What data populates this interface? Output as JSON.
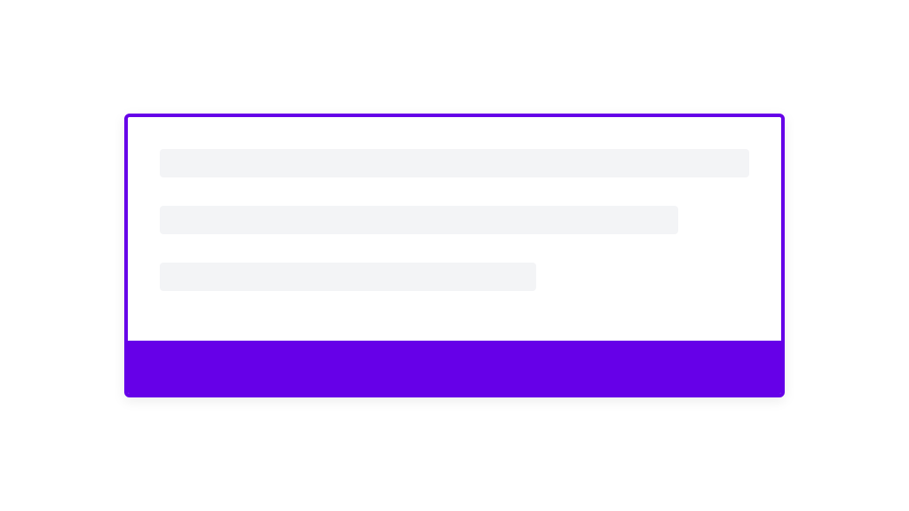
{
  "colors": {
    "accent": "#6600e8",
    "skeleton": "#f3f4f6"
  },
  "skeleton": {
    "line_count": 3
  }
}
